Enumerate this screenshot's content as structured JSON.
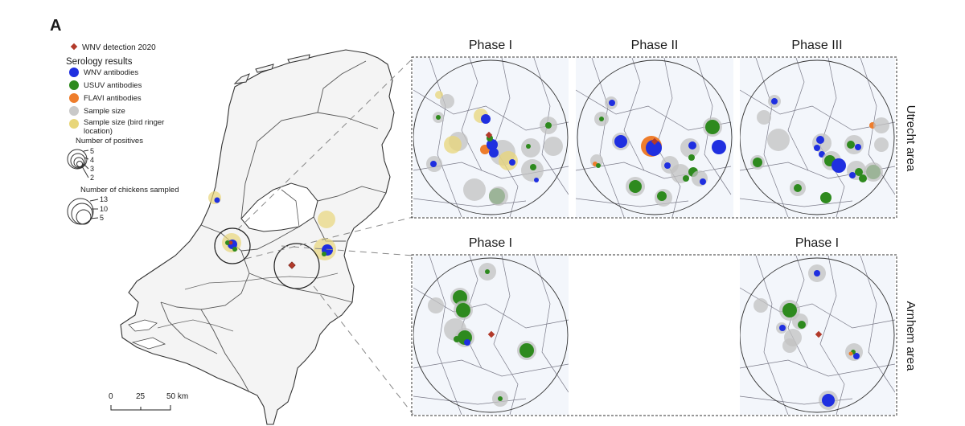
{
  "panel_label": "A",
  "legend": {
    "wnv_detection": "WNV detection 2020",
    "serology_title": "Serology results",
    "items": [
      {
        "label": "WNV antibodies",
        "color": "#1f2fe0"
      },
      {
        "label": "USUV antibodies",
        "color": "#2e8a1e"
      },
      {
        "label": "FLAVI antibodies",
        "color": "#ee7d2c"
      },
      {
        "label": "Sample size",
        "color": "#c9c9c9"
      },
      {
        "label": "Sample size (bird ringer",
        "label2": "location)",
        "color": "#e8d67a"
      }
    ],
    "positives_title": "Number of positives",
    "positives_values": [
      "5",
      "4",
      "3",
      "2"
    ],
    "sampled_title": "Number of chickens sampled",
    "sampled_values": [
      "13",
      "10",
      "5"
    ],
    "detection_color": "#b23a2a"
  },
  "scalebar": {
    "ticks": [
      "0",
      "25",
      "50 km"
    ]
  },
  "insets": {
    "utrecht": {
      "row_label": "Utrecht area",
      "phases": [
        "Phase I",
        "Phase II",
        "Phase III"
      ]
    },
    "arnhem": {
      "row_label": "Arnhem area",
      "phases": [
        "Phase I",
        "Phase I"
      ]
    }
  }
}
